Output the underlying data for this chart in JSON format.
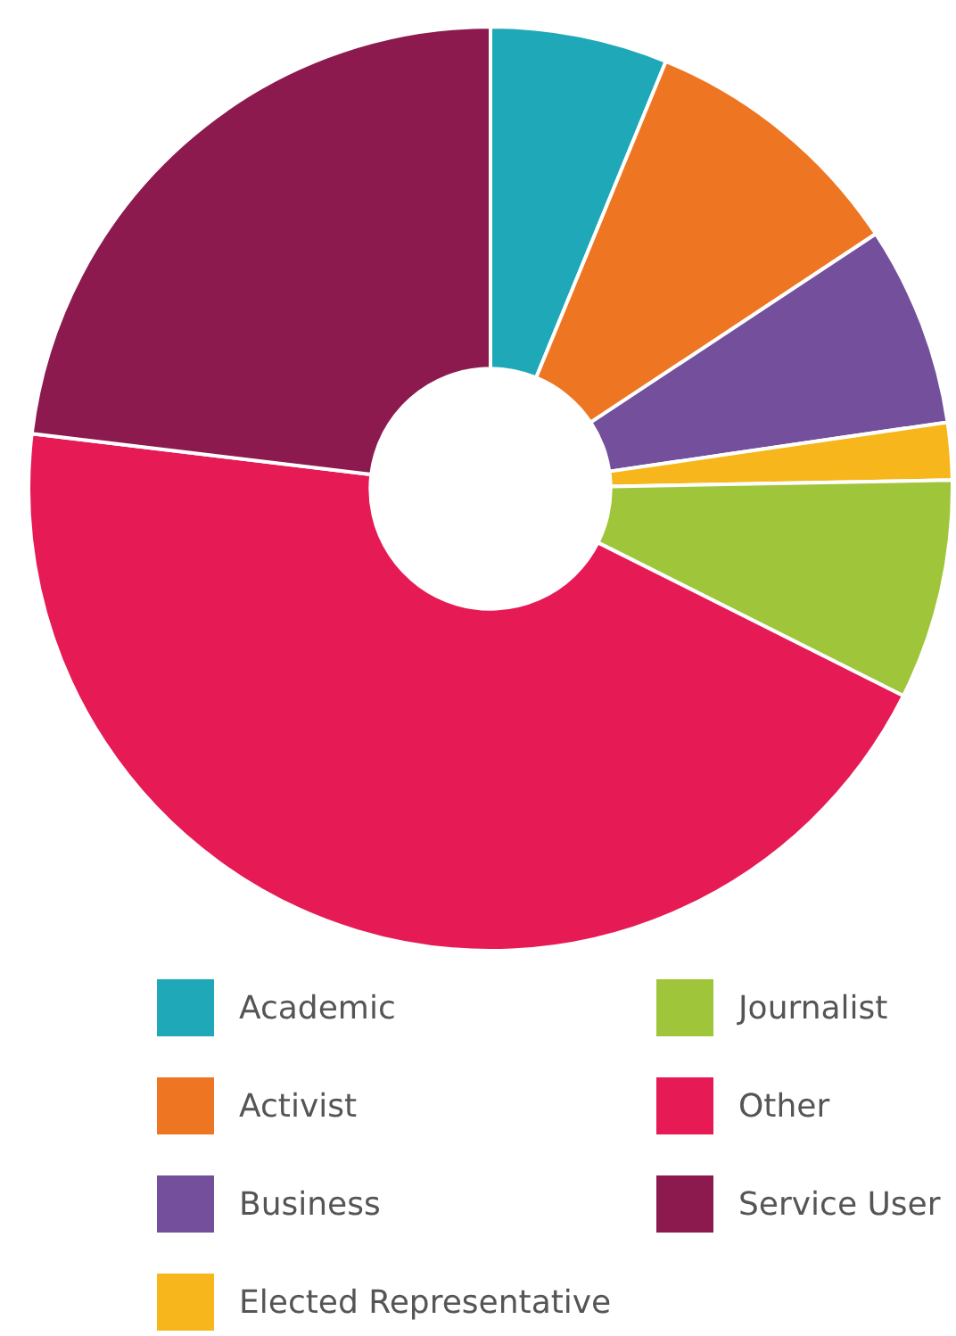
{
  "chart_data": {
    "type": "donut",
    "categories": [
      "Academic",
      "Activist",
      "Business",
      "Elected Representative",
      "Journalist",
      "Other",
      "Service User"
    ],
    "values": [
      6.2,
      9.5,
      7,
      2,
      7.7,
      44.5,
      23.1
    ],
    "colors": [
      "#1fa8b8",
      "#ee7623",
      "#734f9c",
      "#f6b61c",
      "#9fc63b",
      "#e61a55",
      "#8c1a4f"
    ],
    "legend": "bottom"
  }
}
